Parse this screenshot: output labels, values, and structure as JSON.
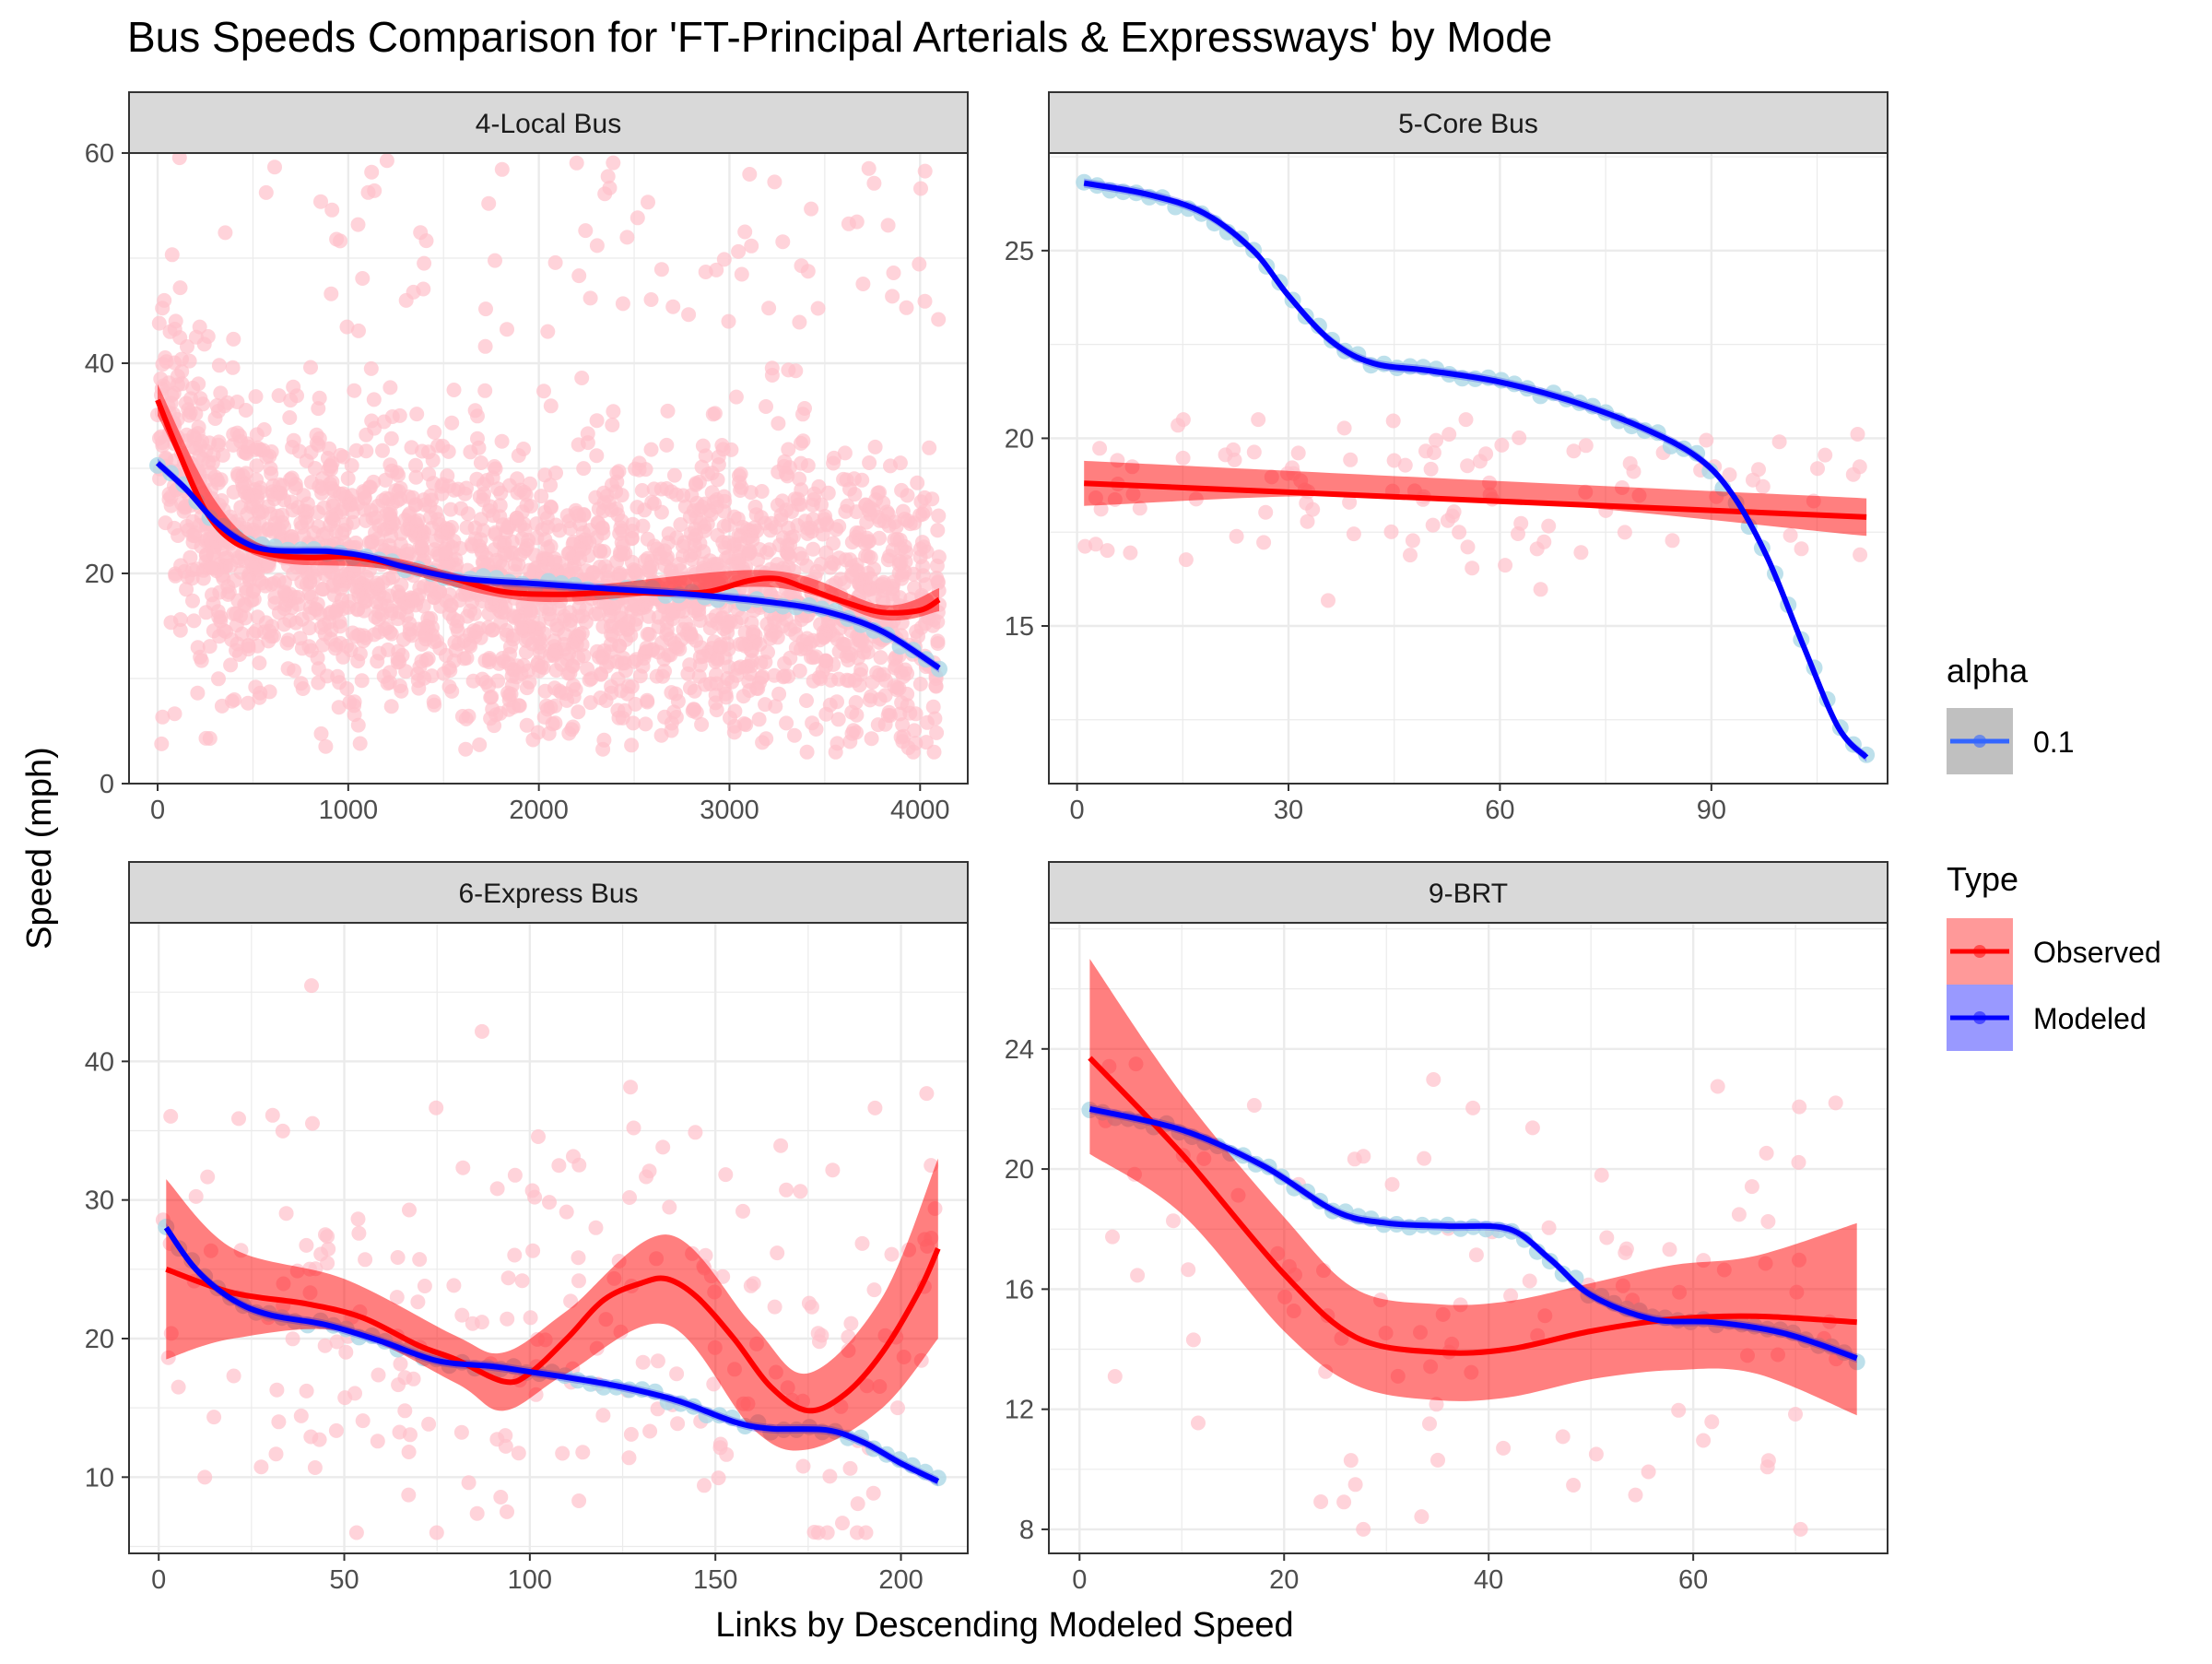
{
  "title": "Bus Speeds Comparison for 'FT-Principal Arterials & Expressways' by Mode",
  "xlabel": "Links by Descending Modeled Speed",
  "ylabel": "Speed (mph)",
  "legend": {
    "alpha_title": "alpha",
    "alpha_value": "0.1",
    "type_title": "Type",
    "observed_label": "Observed",
    "modeled_label": "Modeled"
  },
  "colors": {
    "observed": "#ff0000",
    "modeled": "#0000ff",
    "observed_points": "#ffc0cb",
    "modeled_points": "#add8e6",
    "ribbon": "#ff0000",
    "strip": "#d9d9d9",
    "grid": "#ebebeb"
  },
  "chart_data": [
    {
      "type": "scatter",
      "panel": "4-Local Bus",
      "xlim": [
        -150,
        4250
      ],
      "ylim": [
        0,
        60
      ],
      "xticks": [
        0,
        1000,
        2000,
        3000,
        4000
      ],
      "yticks": [
        0,
        20,
        40,
        60
      ],
      "series": [
        {
          "name": "Observed",
          "smooth": [
            [
              0,
              36.5
            ],
            [
              100,
              32
            ],
            [
              250,
              26
            ],
            [
              400,
              23
            ],
            [
              600,
              21.8
            ],
            [
              800,
              21.5
            ],
            [
              1000,
              21.6
            ],
            [
              1200,
              21
            ],
            [
              1500,
              19.8
            ],
            [
              1800,
              18.3
            ],
            [
              2100,
              18
            ],
            [
              2400,
              18.2
            ],
            [
              2700,
              18.1
            ],
            [
              2900,
              18.3
            ],
            [
              3100,
              19.3
            ],
            [
              3250,
              19.5
            ],
            [
              3400,
              18.6
            ],
            [
              3600,
              17.3
            ],
            [
              3800,
              16.3
            ],
            [
              4000,
              16.5
            ],
            [
              4100,
              17.5
            ]
          ]
        },
        {
          "name": "Modeled",
          "smooth": [
            [
              0,
              30.5
            ],
            [
              150,
              28
            ],
            [
              300,
              25
            ],
            [
              450,
              23
            ],
            [
              600,
              22.2
            ],
            [
              900,
              22.1
            ],
            [
              1100,
              21.6
            ],
            [
              1300,
              20.6
            ],
            [
              1600,
              19.5
            ],
            [
              2000,
              19
            ],
            [
              2400,
              18.5
            ],
            [
              2800,
              18
            ],
            [
              3200,
              17.3
            ],
            [
              3500,
              16.4
            ],
            [
              3800,
              14.5
            ],
            [
              4100,
              11
            ]
          ]
        }
      ],
      "ribbon": {
        "upper": [
          [
            0,
            38
          ],
          [
            300,
            27
          ],
          [
            600,
            22.4
          ],
          [
            1200,
            21.6
          ],
          [
            2000,
            18.7
          ],
          [
            3200,
            20.3
          ],
          [
            3800,
            17
          ],
          [
            4100,
            18.6
          ]
        ],
        "lower": [
          [
            0,
            35
          ],
          [
            300,
            25
          ],
          [
            600,
            21.2
          ],
          [
            1200,
            20.4
          ],
          [
            2000,
            17.3
          ],
          [
            3200,
            18.7
          ],
          [
            3800,
            15.6
          ],
          [
            4100,
            16.4
          ]
        ]
      },
      "observed_points": {
        "count": 2600,
        "x_range": [
          0,
          4100
        ],
        "y_range": [
          3,
          60
        ],
        "center": 19,
        "spread": 7
      }
    },
    {
      "type": "scatter",
      "panel": "5-Core Bus",
      "xlim": [
        -4,
        115
      ],
      "ylim": [
        10.8,
        27.6
      ],
      "xticks": [
        0,
        30,
        60,
        90
      ],
      "yticks": [
        15,
        20,
        25
      ],
      "series": [
        {
          "name": "Observed",
          "smooth": [
            [
              1,
              18.8
            ],
            [
              112,
              17.9
            ]
          ]
        },
        {
          "name": "Modeled",
          "smooth": [
            [
              1,
              26.8
            ],
            [
              10,
              26.5
            ],
            [
              18,
              26
            ],
            [
              25,
              25
            ],
            [
              30,
              23.8
            ],
            [
              36,
              22.6
            ],
            [
              42,
              22
            ],
            [
              50,
              21.8
            ],
            [
              60,
              21.5
            ],
            [
              70,
              21
            ],
            [
              80,
              20.3
            ],
            [
              88,
              19.5
            ],
            [
              93,
              18.5
            ],
            [
              98,
              16.8
            ],
            [
              103,
              14.5
            ],
            [
              108,
              12.3
            ],
            [
              112,
              11.5
            ]
          ]
        }
      ],
      "ribbon": {
        "upper": [
          [
            1,
            19.4
          ],
          [
            50,
            18.95
          ],
          [
            112,
            18.4
          ]
        ],
        "lower": [
          [
            1,
            18.2
          ],
          [
            50,
            18.45
          ],
          [
            112,
            17.4
          ]
        ]
      },
      "observed_points": {
        "count": 110,
        "x_range": [
          1,
          112
        ],
        "y_range": [
          15.5,
          20.5
        ],
        "center": 18.5,
        "spread": 1.2
      }
    },
    {
      "type": "scatter",
      "panel": "6-Express Bus",
      "xlim": [
        -8,
        218
      ],
      "ylim": [
        4.5,
        50
      ],
      "xticks": [
        0,
        50,
        100,
        150,
        200
      ],
      "yticks": [
        10,
        20,
        30,
        40
      ],
      "series": [
        {
          "name": "Observed",
          "smooth": [
            [
              2,
              25
            ],
            [
              20,
              23.3
            ],
            [
              40,
              22.5
            ],
            [
              55,
              21.5
            ],
            [
              70,
              19.5
            ],
            [
              80,
              18.5
            ],
            [
              93,
              16.9
            ],
            [
              100,
              17.5
            ],
            [
              110,
              20
            ],
            [
              120,
              22.8
            ],
            [
              130,
              24
            ],
            [
              137,
              24.3
            ],
            [
              145,
              23
            ],
            [
              155,
              20
            ],
            [
              165,
              16.5
            ],
            [
              175,
              14.8
            ],
            [
              185,
              16
            ],
            [
              195,
              19
            ],
            [
              205,
              23.5
            ],
            [
              210,
              26.5
            ]
          ]
        },
        {
          "name": "Modeled",
          "smooth": [
            [
              2,
              28
            ],
            [
              10,
              25
            ],
            [
              20,
              22.8
            ],
            [
              30,
              21.7
            ],
            [
              45,
              21
            ],
            [
              60,
              19.8
            ],
            [
              75,
              18.4
            ],
            [
              90,
              18
            ],
            [
              100,
              17.6
            ],
            [
              110,
              17.2
            ],
            [
              125,
              16.5
            ],
            [
              140,
              15.5
            ],
            [
              155,
              14
            ],
            [
              165,
              13.5
            ],
            [
              180,
              13.4
            ],
            [
              190,
              12.5
            ],
            [
              200,
              11
            ],
            [
              210,
              9.7
            ]
          ]
        }
      ],
      "ribbon": {
        "upper": [
          [
            2,
            31.5
          ],
          [
            20,
            26.5
          ],
          [
            50,
            24.3
          ],
          [
            80,
            20.2
          ],
          [
            93,
            19
          ],
          [
            110,
            22
          ],
          [
            137,
            27.5
          ],
          [
            160,
            21
          ],
          [
            175,
            17.5
          ],
          [
            195,
            23
          ],
          [
            210,
            33
          ]
        ],
        "lower": [
          [
            2,
            18.5
          ],
          [
            20,
            20
          ],
          [
            50,
            20.5
          ],
          [
            80,
            16.8
          ],
          [
            93,
            14.8
          ],
          [
            110,
            17.5
          ],
          [
            137,
            21
          ],
          [
            160,
            13.5
          ],
          [
            175,
            12
          ],
          [
            195,
            15
          ],
          [
            210,
            20
          ]
        ]
      },
      "observed_points": {
        "count": 230,
        "x_range": [
          1,
          210
        ],
        "y_range": [
          6,
          46
        ],
        "center": 19,
        "spread": 8
      }
    },
    {
      "type": "scatter",
      "panel": "9-BRT",
      "xlim": [
        -3,
        79
      ],
      "ylim": [
        7.2,
        28.2
      ],
      "xticks": [
        0,
        20,
        40,
        60
      ],
      "yticks": [
        8,
        12,
        16,
        20,
        24
      ],
      "series": [
        {
          "name": "Observed",
          "smooth": [
            [
              1,
              23.7
            ],
            [
              10,
              20.5
            ],
            [
              20,
              16.5
            ],
            [
              27,
              14.4
            ],
            [
              35,
              13.9
            ],
            [
              42,
              14
            ],
            [
              50,
              14.6
            ],
            [
              58,
              15
            ],
            [
              66,
              15.1
            ],
            [
              76,
              14.9
            ]
          ]
        },
        {
          "name": "Modeled",
          "smooth": [
            [
              1,
              22
            ],
            [
              10,
              21.3
            ],
            [
              18,
              20.1
            ],
            [
              25,
              18.6
            ],
            [
              30,
              18.2
            ],
            [
              36,
              18.1
            ],
            [
              42,
              18
            ],
            [
              46,
              17
            ],
            [
              50,
              15.8
            ],
            [
              56,
              15
            ],
            [
              62,
              14.9
            ],
            [
              68,
              14.6
            ],
            [
              72,
              14.2
            ],
            [
              76,
              13.7
            ]
          ]
        }
      ],
      "ribbon": {
        "upper": [
          [
            1,
            27
          ],
          [
            10,
            22.5
          ],
          [
            20,
            18.4
          ],
          [
            27,
            16
          ],
          [
            35,
            15.5
          ],
          [
            42,
            15.6
          ],
          [
            50,
            16.2
          ],
          [
            58,
            16.8
          ],
          [
            66,
            17.1
          ],
          [
            76,
            18.2
          ]
        ],
        "lower": [
          [
            1,
            20.5
          ],
          [
            10,
            18.5
          ],
          [
            20,
            14.6
          ],
          [
            27,
            12.8
          ],
          [
            35,
            12.3
          ],
          [
            42,
            12.4
          ],
          [
            50,
            13
          ],
          [
            58,
            13.3
          ],
          [
            66,
            13.2
          ],
          [
            76,
            11.8
          ]
        ]
      },
      "observed_points": {
        "count": 100,
        "x_range": [
          1,
          76
        ],
        "y_range": [
          8,
          23.5
        ],
        "center": 16,
        "spread": 4
      }
    }
  ]
}
